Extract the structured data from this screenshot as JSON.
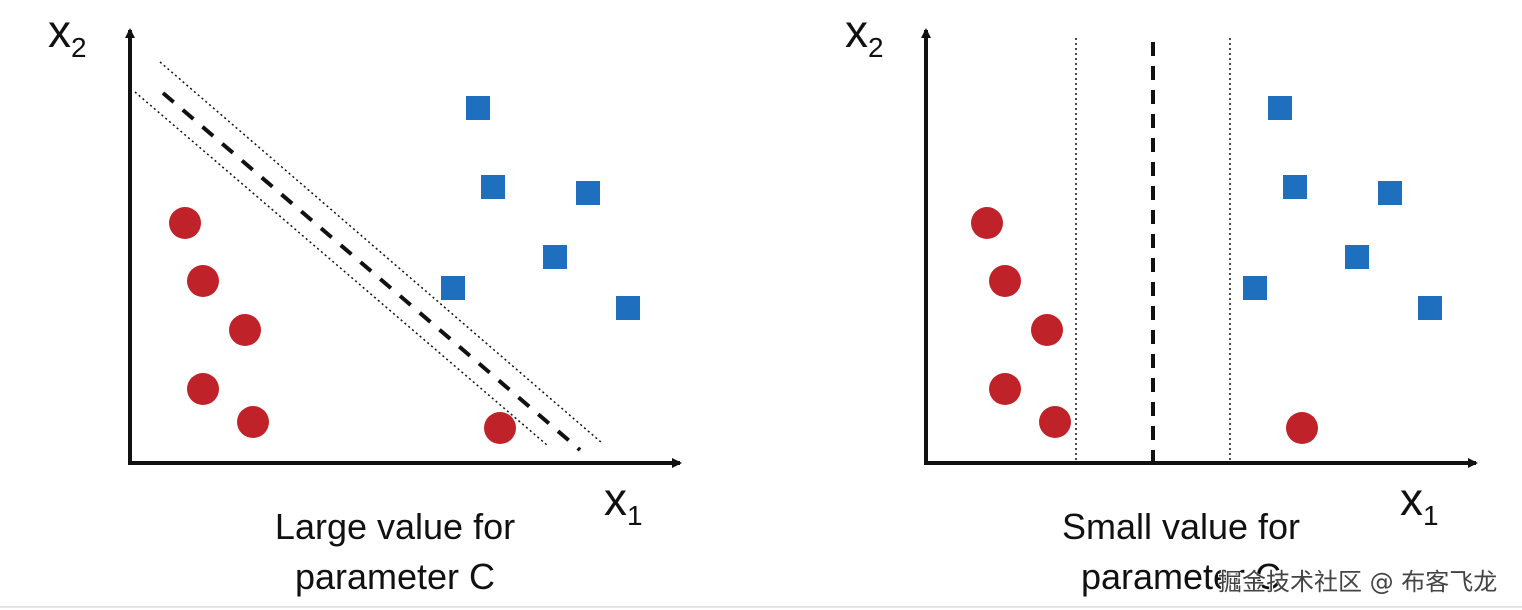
{
  "panels": [
    {
      "id": "large-c",
      "y_label": "x",
      "y_label_sub": "2",
      "x_label": "x",
      "x_label_sub": "1",
      "caption_line1": "Large value for",
      "caption_line2": "parameter C",
      "boundary": "diagonal"
    },
    {
      "id": "small-c",
      "y_label": "x",
      "y_label_sub": "2",
      "x_label": "x",
      "x_label_sub": "1",
      "caption_line1": "Small value for",
      "caption_line2": "parameter C",
      "boundary": "vertical"
    }
  ],
  "colors": {
    "class_a": "#c0222a",
    "class_b": "#1f6fbf",
    "axis": "#111111"
  },
  "watermark": "掘金技术社区 @ 布客飞龙"
}
